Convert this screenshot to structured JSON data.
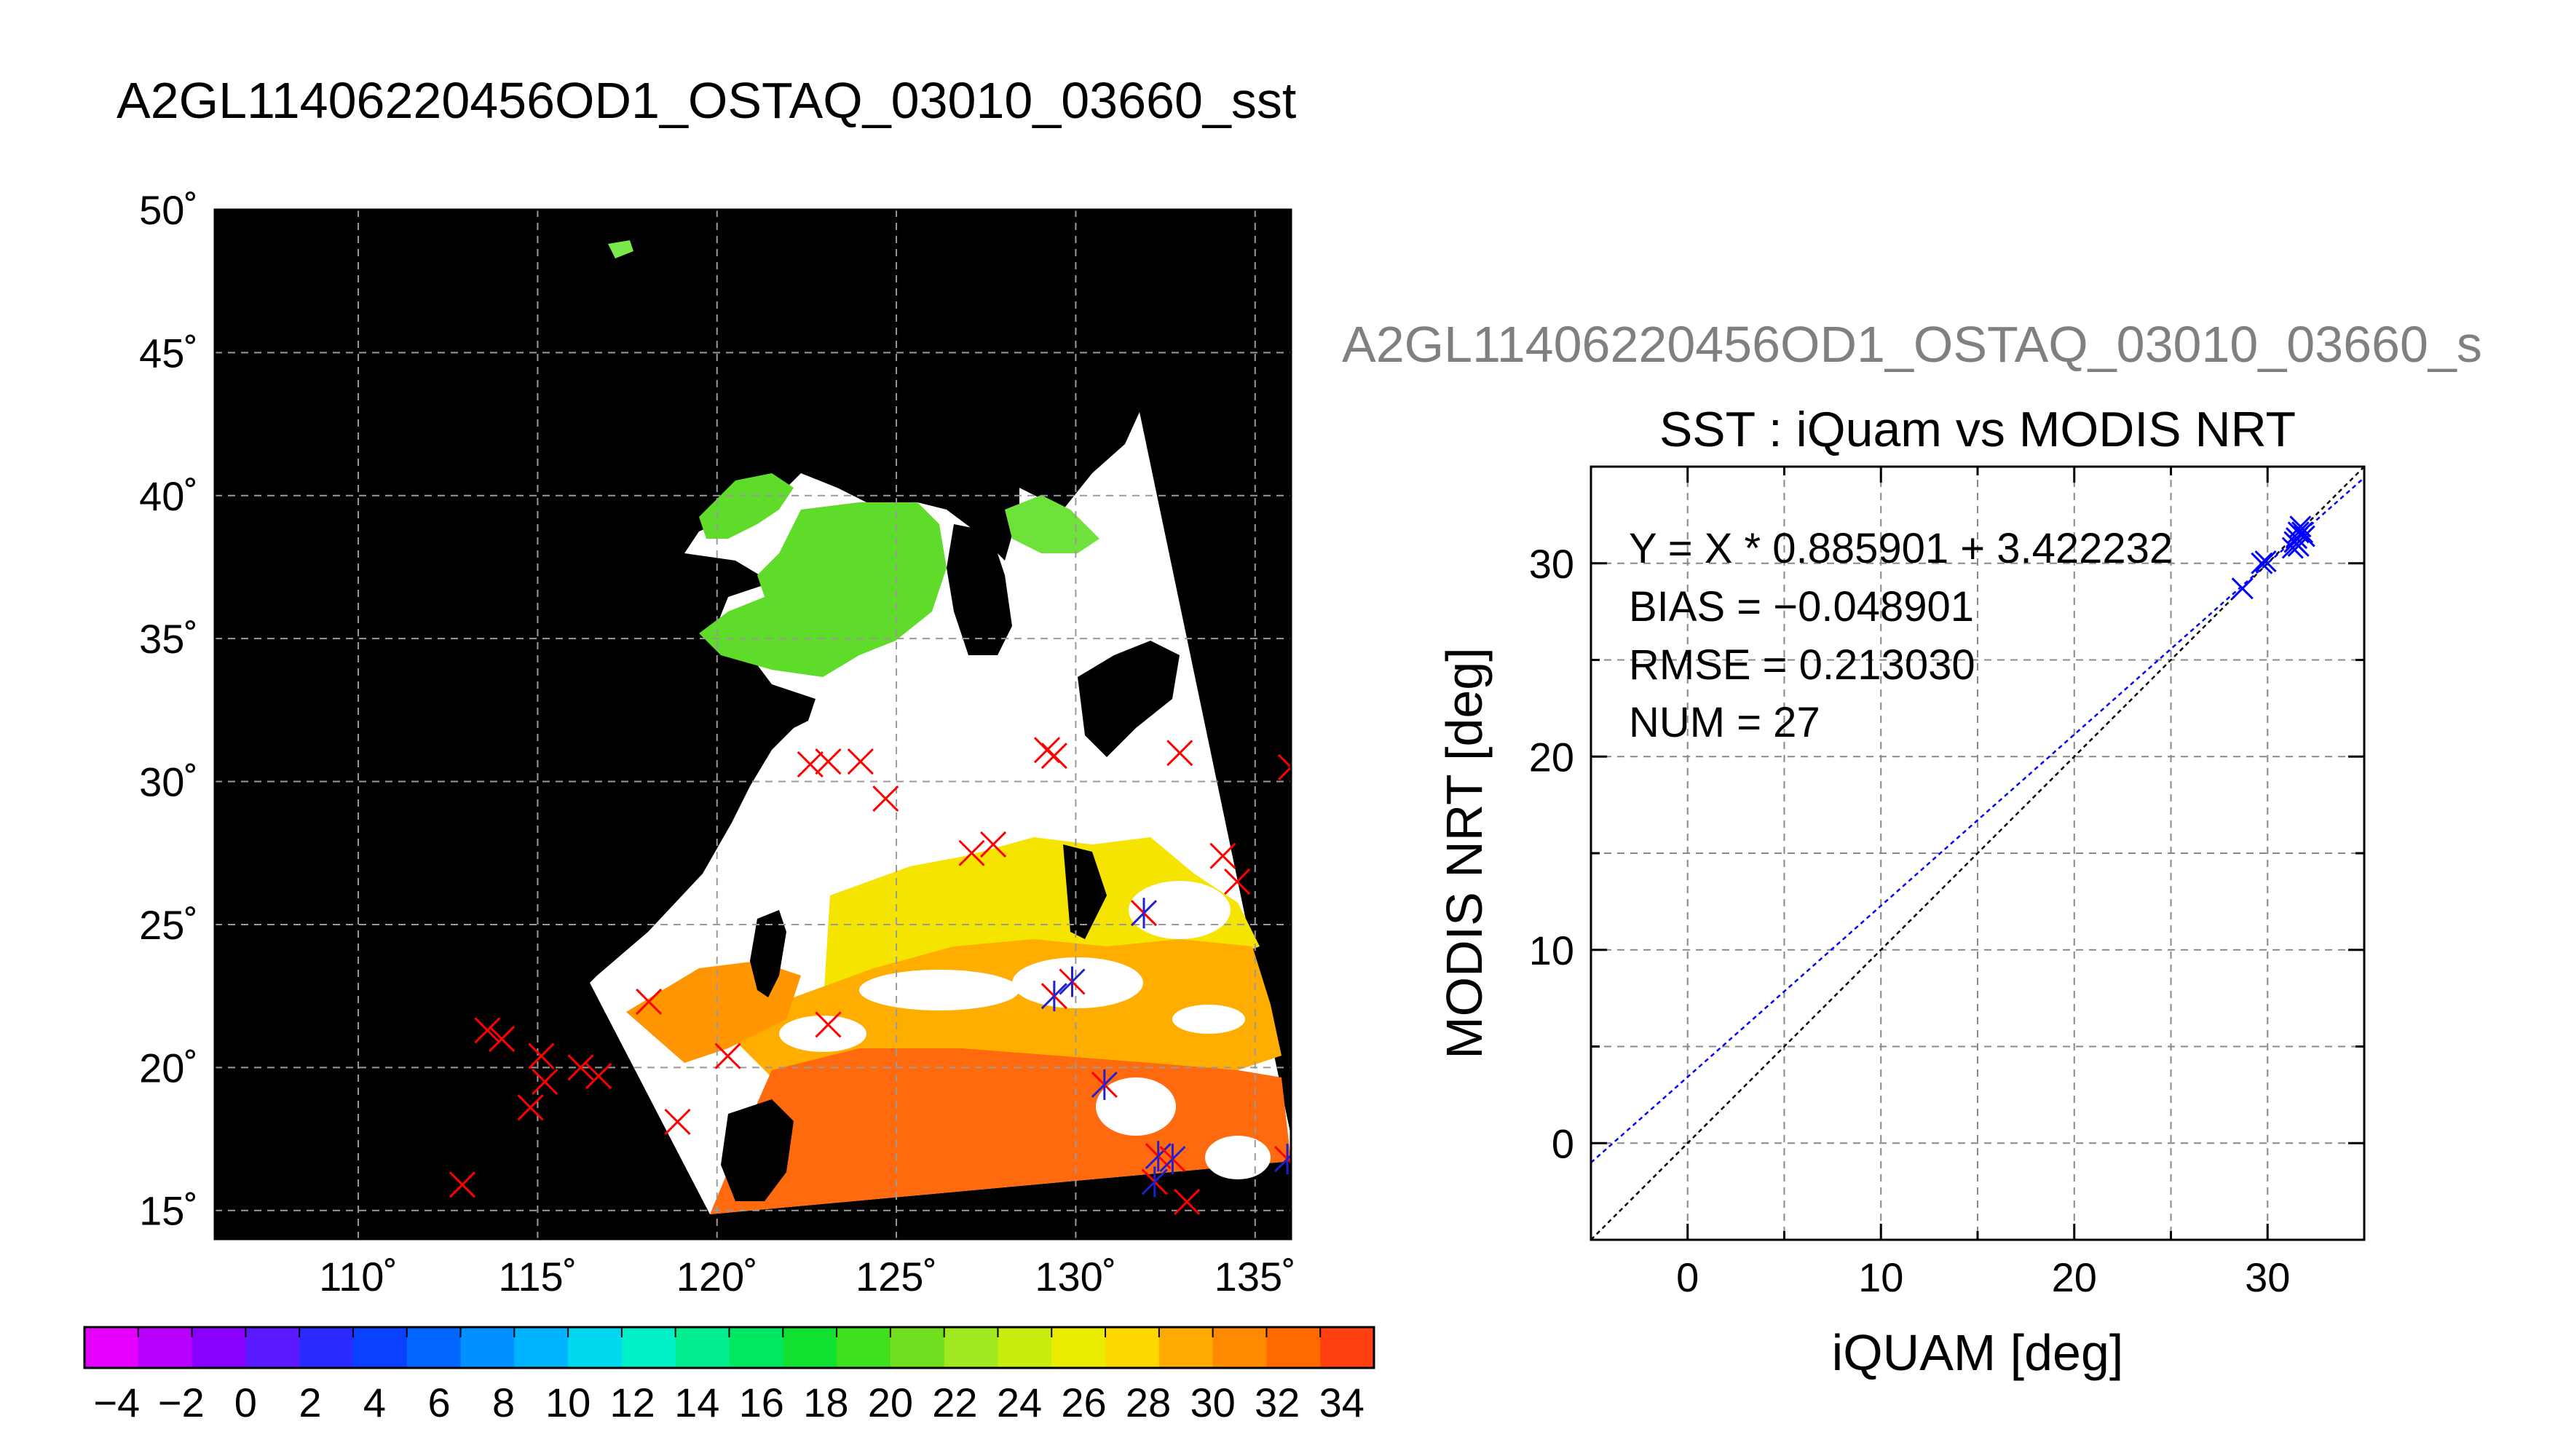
{
  "main_title": "A2GL11406220456OD1_OSTAQ_03010_03660_sst",
  "chart_data": [
    {
      "type": "map",
      "lon_tick_labels": [
        "110˚",
        "115˚",
        "120˚",
        "125˚",
        "130˚",
        "135˚"
      ],
      "lon_ticks": [
        110,
        115,
        120,
        125,
        130,
        135
      ],
      "lat_tick_labels": [
        "15˚",
        "20˚",
        "25˚",
        "30˚",
        "35˚",
        "40˚",
        "45˚",
        "50˚"
      ],
      "lat_ticks": [
        15,
        20,
        25,
        30,
        35,
        40,
        45,
        50
      ],
      "xlim": [
        106,
        136
      ],
      "ylim": [
        14,
        50
      ],
      "grid": true,
      "markers_red_x": [
        [
          122.6,
          30.6
        ],
        [
          123.1,
          30.7
        ],
        [
          124.0,
          30.7
        ],
        [
          124.7,
          29.4
        ],
        [
          129.2,
          31.1
        ],
        [
          129.4,
          30.9
        ],
        [
          132.9,
          31.0
        ],
        [
          136.0,
          30.5
        ],
        [
          127.1,
          27.5
        ],
        [
          127.7,
          27.8
        ],
        [
          134.1,
          27.4
        ],
        [
          134.5,
          26.5
        ],
        [
          118.1,
          22.3
        ],
        [
          123.1,
          21.5
        ],
        [
          120.3,
          20.4
        ],
        [
          113.6,
          21.3
        ],
        [
          114.0,
          21.0
        ],
        [
          115.1,
          20.4
        ],
        [
          115.2,
          19.5
        ],
        [
          116.2,
          20.0
        ],
        [
          116.7,
          19.7
        ],
        [
          114.8,
          18.6
        ],
        [
          118.9,
          18.1
        ],
        [
          112.9,
          15.9
        ],
        [
          133.1,
          15.3
        ]
      ],
      "markers_blue_star": [
        [
          131.9,
          25.4
        ],
        [
          129.4,
          22.5
        ],
        [
          129.9,
          23.0
        ],
        [
          130.8,
          19.4
        ],
        [
          132.3,
          16.9
        ],
        [
          132.7,
          16.8
        ],
        [
          132.2,
          16.0
        ],
        [
          135.9,
          16.8
        ]
      ]
    },
    {
      "type": "colorbar",
      "tick_labels": [
        "−4",
        "−2",
        "0",
        "2",
        "4",
        "6",
        "8",
        "10",
        "12",
        "14",
        "16",
        "18",
        "20",
        "22",
        "24",
        "26",
        "28",
        "30",
        "32",
        "34"
      ],
      "range": [
        -5,
        35
      ]
    },
    {
      "type": "scatter",
      "file_title": "A2GL11406220456OD1_OSTAQ_03010_03660_s",
      "title": "SST : iQuam vs MODIS NRT",
      "xlabel": "iQUAM [deg]",
      "ylabel": "MODIS NRT [deg]",
      "xlim": [
        -5,
        35
      ],
      "ylim": [
        -5,
        35
      ],
      "x_ticks": [
        0,
        10,
        20,
        30
      ],
      "y_ticks": [
        0,
        10,
        20,
        30
      ],
      "x_tick_labels": [
        "0",
        "10",
        "20",
        "30"
      ],
      "y_tick_labels": [
        "0",
        "10",
        "20",
        "30"
      ],
      "grid": true,
      "stats": [
        "Y = X * 0.885901 + 3.422232",
        "BIAS = −0.048901",
        "RMSE = 0.213030",
        "NUM = 27"
      ],
      "fit": {
        "slope": 0.885901,
        "intercept": 3.422232
      },
      "points": [
        [
          28.7,
          28.7
        ],
        [
          29.7,
          30.0
        ],
        [
          29.9,
          30.1
        ],
        [
          31.3,
          30.8
        ],
        [
          31.5,
          31.3
        ],
        [
          31.6,
          31.6
        ],
        [
          31.7,
          31.9
        ],
        [
          31.8,
          31.6
        ],
        [
          31.4,
          31.1
        ],
        [
          31.6,
          30.9
        ],
        [
          31.9,
          31.4
        ]
      ]
    }
  ]
}
